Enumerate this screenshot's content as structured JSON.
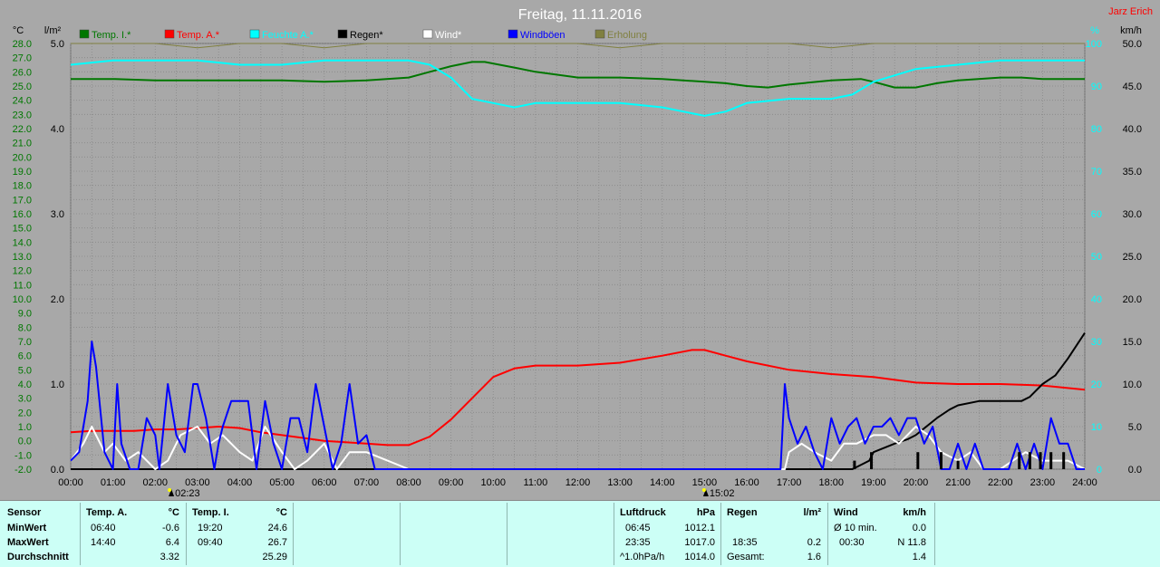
{
  "title": "Freitag, 11.11.2016",
  "author": "Jarz Erich",
  "legend": [
    {
      "label": "Temp. I.*",
      "color": "#007700"
    },
    {
      "label": "Temp. A.*",
      "color": "#ff0000"
    },
    {
      "label": "Feuchte A.*",
      "color": "#00ffff"
    },
    {
      "label": "Regen*",
      "color": "#000000"
    },
    {
      "label": "Wind*",
      "color": "#ffffff"
    },
    {
      "label": "Windböen",
      "color": "#0000ff"
    },
    {
      "label": "Erholung",
      "color": "#808040"
    }
  ],
  "axes": {
    "temp_unit": "°C",
    "rain_unit": "l/m²",
    "hum_unit": "%",
    "wind_unit": "km/h",
    "temp_ticks": [
      "-2.0",
      "-1.0",
      "0.0",
      "1.0",
      "2.0",
      "3.0",
      "4.0",
      "5.0",
      "6.0",
      "7.0",
      "8.0",
      "9.0",
      "10.0",
      "11.0",
      "12.0",
      "13.0",
      "14.0",
      "15.0",
      "16.0",
      "17.0",
      "18.0",
      "19.0",
      "20.0",
      "21.0",
      "22.0",
      "23.0",
      "24.0",
      "25.0",
      "26.0",
      "27.0",
      "28.0"
    ],
    "rain_ticks": [
      "0.0",
      "1.0",
      "2.0",
      "3.0",
      "4.0",
      "5.0"
    ],
    "hum_ticks": [
      "0",
      "10",
      "20",
      "30",
      "40",
      "50",
      "60",
      "70",
      "80",
      "90",
      "100"
    ],
    "wind_ticks": [
      "0.0",
      "5.0",
      "10.0",
      "15.0",
      "20.0",
      "25.0",
      "30.0",
      "35.0",
      "40.0",
      "45.0",
      "50.0"
    ],
    "x_ticks": [
      "00:00",
      "01:00",
      "02:00",
      "03:00",
      "04:00",
      "05:00",
      "06:00",
      "07:00",
      "08:00",
      "09:00",
      "10:00",
      "11:00",
      "12:00",
      "13:00",
      "14:00",
      "15:00",
      "16:00",
      "17:00",
      "18:00",
      "19:00",
      "20:00",
      "21:00",
      "22:00",
      "23:00",
      "24:00"
    ]
  },
  "markers": [
    {
      "hour": 2.383,
      "label": "02:23"
    },
    {
      "hour": 15.033,
      "label": "15:02"
    }
  ],
  "chart_data": {
    "type": "line",
    "title": "Freitag, 11.11.2016",
    "xlabel": "",
    "xlim": [
      0,
      24
    ],
    "ylim_left_temp": [
      -2,
      28
    ],
    "ylim_left_rain": [
      0,
      5
    ],
    "ylim_right_hum": [
      0,
      100
    ],
    "ylim_right_wind": [
      0,
      50
    ],
    "grid": true,
    "legend_position": "top",
    "series": [
      {
        "name": "Temp. I.*",
        "axis": "temp",
        "color": "#007700",
        "x": [
          0,
          1,
          2,
          3,
          4,
          5,
          6,
          7,
          8,
          8.5,
          9,
          9.5,
          9.8,
          10.5,
          11,
          12,
          13,
          14,
          15,
          15.5,
          16,
          16.5,
          17,
          18,
          18.7,
          19,
          19.5,
          20,
          20.5,
          21,
          22,
          22.5,
          23,
          24
        ],
        "y": [
          25.5,
          25.5,
          25.4,
          25.4,
          25.4,
          25.4,
          25.3,
          25.4,
          25.6,
          26.0,
          26.4,
          26.7,
          26.7,
          26.3,
          26.0,
          25.6,
          25.6,
          25.5,
          25.3,
          25.2,
          25.0,
          24.9,
          25.1,
          25.4,
          25.5,
          25.3,
          24.9,
          24.9,
          25.2,
          25.4,
          25.6,
          25.6,
          25.5,
          25.5
        ]
      },
      {
        "name": "Temp. A.*",
        "axis": "temp",
        "color": "#ff0000",
        "x": [
          0,
          0.5,
          1,
          1.5,
          2,
          2.5,
          3,
          3.5,
          4,
          4.5,
          5,
          5.5,
          6,
          6.5,
          7,
          7.5,
          8,
          8.5,
          9,
          9.5,
          10,
          10.5,
          11,
          12,
          13,
          14,
          14.7,
          15,
          15.5,
          16,
          17,
          18,
          19,
          20,
          21,
          22,
          23,
          24
        ],
        "y": [
          0.6,
          0.7,
          0.7,
          0.7,
          0.8,
          0.8,
          0.9,
          1.0,
          0.9,
          0.6,
          0.4,
          0.2,
          0.0,
          -0.1,
          -0.2,
          -0.3,
          -0.3,
          0.3,
          1.5,
          3.0,
          4.5,
          5.1,
          5.3,
          5.3,
          5.5,
          6.0,
          6.4,
          6.4,
          6.0,
          5.6,
          5.0,
          4.7,
          4.5,
          4.1,
          4.0,
          4.0,
          3.9,
          3.6
        ]
      },
      {
        "name": "Feuchte A.*",
        "axis": "hum",
        "color": "#00ffff",
        "x": [
          0,
          1,
          2,
          3,
          4,
          5,
          6,
          7,
          8,
          8.5,
          9,
          9.5,
          10,
          10.5,
          11,
          12,
          13,
          14,
          14.5,
          15,
          15.5,
          16,
          17,
          18,
          18.5,
          19,
          20,
          21,
          22,
          23,
          24
        ],
        "y": [
          95,
          96,
          96,
          96,
          95,
          95,
          96,
          96,
          96,
          95,
          92,
          87,
          86,
          85,
          86,
          86,
          86,
          85,
          84,
          83,
          84,
          86,
          87,
          87,
          88,
          91,
          94,
          95,
          96,
          96,
          96
        ]
      },
      {
        "name": "Regen*",
        "axis": "rain",
        "color": "#000000",
        "x": [
          0,
          18.5,
          18.9,
          19.0,
          19.5,
          19.8,
          20.0,
          20.5,
          20.8,
          21.0,
          21.5,
          21.7,
          22.0,
          22.5,
          22.7,
          23.0,
          23.3,
          23.6,
          23.8,
          24.0
        ],
        "y": [
          0,
          0,
          0.1,
          0.2,
          0.3,
          0.35,
          0.4,
          0.6,
          0.7,
          0.75,
          0.8,
          0.8,
          0.8,
          0.8,
          0.85,
          1.0,
          1.1,
          1.3,
          1.45,
          1.6
        ]
      },
      {
        "name": "Wind*",
        "axis": "wind",
        "color": "#ffffff",
        "x": [
          0,
          0.3,
          0.5,
          0.8,
          1,
          1.3,
          1.6,
          2,
          2.3,
          2.6,
          3,
          3.3,
          3.6,
          4,
          4.3,
          4.6,
          5,
          5.3,
          5.6,
          6,
          6.3,
          6.6,
          7,
          7.5,
          8,
          16.9,
          17,
          17.3,
          17.6,
          18,
          18.3,
          18.6,
          19,
          19.3,
          19.6,
          20,
          20.3,
          20.6,
          21,
          21.3,
          21.6,
          22,
          22.3,
          22.6,
          23,
          23.3,
          23.6,
          24
        ],
        "y": [
          1,
          3,
          5,
          2,
          3,
          1,
          2,
          0,
          1,
          4,
          5,
          3,
          4,
          2,
          1,
          5,
          2,
          0,
          1,
          3,
          0,
          2,
          2,
          1,
          0,
          0,
          2,
          3,
          2,
          1,
          3,
          3,
          4,
          4,
          3,
          5,
          4,
          2,
          1,
          2,
          0,
          0,
          1,
          2,
          1,
          1,
          1,
          0
        ]
      },
      {
        "name": "Windböen",
        "axis": "wind",
        "color": "#0000ff",
        "x": [
          0,
          0.2,
          0.4,
          0.5,
          0.6,
          0.8,
          1.0,
          1.1,
          1.2,
          1.4,
          1.6,
          1.8,
          2.0,
          2.1,
          2.3,
          2.5,
          2.7,
          2.9,
          3.0,
          3.2,
          3.4,
          3.5,
          3.6,
          3.8,
          4.0,
          4.2,
          4.4,
          4.6,
          4.8,
          5.0,
          5.2,
          5.4,
          5.6,
          5.8,
          6.0,
          6.2,
          6.4,
          6.6,
          6.8,
          7.0,
          7.2,
          16.8,
          16.9,
          17.0,
          17.2,
          17.4,
          17.6,
          17.8,
          18.0,
          18.2,
          18.4,
          18.6,
          18.8,
          19.0,
          19.2,
          19.4,
          19.6,
          19.8,
          20.0,
          20.2,
          20.4,
          20.6,
          20.8,
          21.0,
          21.2,
          21.4,
          21.6,
          21.8,
          22.0,
          22.2,
          22.4,
          22.6,
          22.8,
          23.0,
          23.2,
          23.4,
          23.6,
          23.8,
          24.0
        ],
        "y": [
          1,
          2,
          8,
          15,
          12,
          2,
          0,
          10,
          3,
          0,
          0,
          6,
          4,
          0,
          10,
          4,
          2,
          10,
          10,
          6,
          0,
          3,
          5,
          8,
          8,
          8,
          0,
          8,
          3,
          0,
          6,
          6,
          2,
          10,
          5,
          0,
          3,
          10,
          3,
          4,
          0,
          0,
          10,
          6,
          3,
          5,
          2,
          0,
          6,
          3,
          5,
          6,
          3,
          5,
          5,
          6,
          4,
          6,
          6,
          3,
          5,
          0,
          0,
          3,
          0,
          3,
          0,
          0,
          0,
          0,
          3,
          0,
          3,
          0,
          6,
          3,
          3,
          0,
          0
        ]
      },
      {
        "name": "Erholung",
        "axis": "hum",
        "color": "#808040",
        "x": [
          0,
          1,
          2,
          3,
          4,
          5,
          6,
          7,
          8,
          9,
          10,
          11,
          12,
          13,
          14,
          15,
          16,
          17,
          18,
          19,
          20,
          21,
          22,
          23,
          24
        ],
        "y": [
          100,
          100,
          100,
          99,
          100,
          100,
          99,
          100,
          100,
          100,
          100,
          100,
          100,
          99,
          100,
          100,
          100,
          100,
          99,
          100,
          100,
          100,
          100,
          100,
          100
        ]
      }
    ],
    "rain_bars": {
      "x": [
        18.55,
        18.95,
        20.05,
        20.6,
        21.0,
        22.45,
        22.7,
        22.95,
        23.2,
        23.5
      ],
      "y": [
        0.1,
        0.2,
        0.2,
        0.2,
        0.1,
        0.2,
        0.2,
        0.2,
        0.2,
        0.2
      ]
    }
  },
  "stats": {
    "sensor": {
      "header": "Sensor",
      "rows": [
        "MinWert",
        "MaxWert",
        "Durchschnitt"
      ]
    },
    "temp_a": {
      "header": "Temp. A.",
      "unit": "°C",
      "min_time": "06:40",
      "min_val": "-0.6",
      "max_time": "14:40",
      "max_val": "6.4",
      "avg": "3.32"
    },
    "temp_i": {
      "header": "Temp. I.",
      "unit": "°C",
      "min_time": "19:20",
      "min_val": "24.6",
      "max_time": "09:40",
      "max_val": "26.7",
      "avg": "25.29"
    },
    "luftdruck": {
      "header": "Luftdruck",
      "unit": "hPa",
      "min_time": "06:45",
      "min_val": "1012.1",
      "max_time": "23:35",
      "max_val": "1017.0",
      "trend_label": "^1.0hPa/h",
      "trend_val": "1014.0"
    },
    "regen": {
      "header": "Regen",
      "unit": "l/m²",
      "max_time": "18:35",
      "max_val": "0.2",
      "total_label": "Gesamt:",
      "total_val": "1.6"
    },
    "wind": {
      "header": "Wind",
      "unit": "km/h",
      "min_label": "Ø 10 min.",
      "min_val": "0.0",
      "max_time": "00:30",
      "max_val": "N 11.8",
      "avg": "1.4"
    }
  }
}
